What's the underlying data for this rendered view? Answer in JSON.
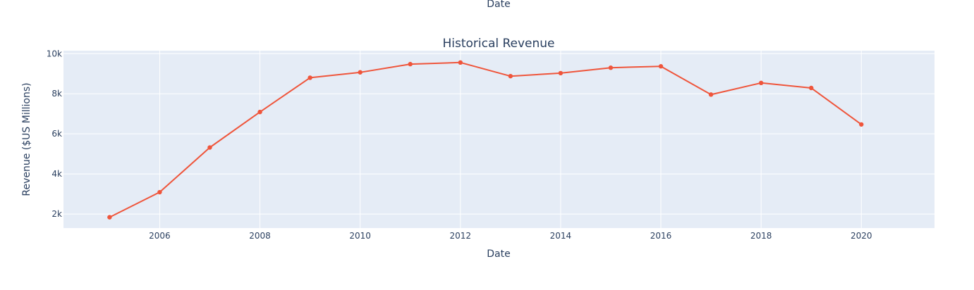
{
  "chart_data": {
    "type": "line",
    "title": "Historical Revenue",
    "xlabel": "Date",
    "xlabel_top": "Date",
    "ylabel": "Revenue ($US Millions)",
    "x_ticks": [
      "2006",
      "2008",
      "2010",
      "2012",
      "2014",
      "2016",
      "2018",
      "2020"
    ],
    "y_ticks": [
      "2k",
      "4k",
      "6k",
      "8k",
      "10k"
    ],
    "xlim": [
      2004.08,
      2021.46
    ],
    "ylim": [
      1300,
      10150
    ],
    "grid": true,
    "series": [
      {
        "x": [
          2005,
          2006,
          2007,
          2008,
          2009,
          2010,
          2011,
          2012,
          2013,
          2014,
          2015,
          2016,
          2017,
          2018,
          2019,
          2020
        ],
        "values": [
          1840,
          3090,
          5320,
          7090,
          8800,
          9070,
          9480,
          9560,
          8880,
          9030,
          9300,
          9370,
          7960,
          8540,
          8290,
          6470
        ]
      }
    ],
    "colors": {
      "line": "#ef553b",
      "plot_bg": "#e5ecf6",
      "grid": "#ffffff",
      "text": "#2a3f5f"
    }
  }
}
